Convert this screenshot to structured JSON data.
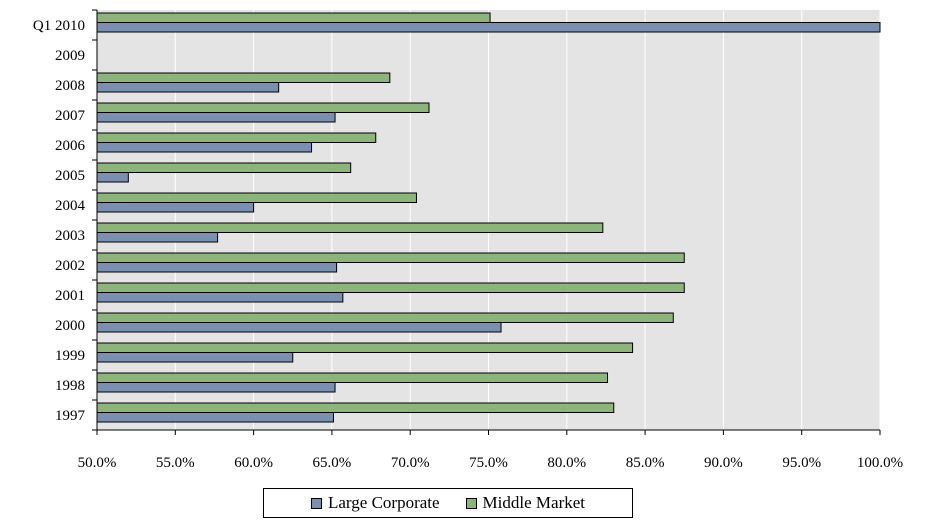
{
  "chart_data": {
    "type": "bar",
    "orientation": "horizontal",
    "categories": [
      "Q1 2010",
      "2009",
      "2008",
      "2007",
      "2006",
      "2005",
      "2004",
      "2003",
      "2002",
      "2001",
      "2000",
      "1999",
      "1998",
      "1997"
    ],
    "series": [
      {
        "name": "Middle Market",
        "color": "#8db47a",
        "values": [
          75.1,
          null,
          68.7,
          71.2,
          67.8,
          66.2,
          70.4,
          82.3,
          87.5,
          87.5,
          86.8,
          84.2,
          82.6,
          83.0
        ]
      },
      {
        "name": "Large Corporate",
        "color": "#7b8fb0",
        "values": [
          100.0,
          null,
          61.6,
          65.2,
          63.7,
          52.0,
          60.0,
          57.7,
          65.3,
          65.7,
          75.8,
          62.5,
          65.2,
          65.1
        ]
      }
    ],
    "xlim": [
      50.0,
      100.0
    ],
    "xticks": [
      "50.0%",
      "55.0%",
      "60.0%",
      "65.0%",
      "70.0%",
      "75.0%",
      "80.0%",
      "85.0%",
      "90.0%",
      "95.0%",
      "100.0%"
    ],
    "xtick_values": [
      50,
      55,
      60,
      65,
      70,
      75,
      80,
      85,
      90,
      95,
      100
    ],
    "grid": true,
    "plot_background": "#e4e4e4",
    "legend_position": "bottom",
    "legend": [
      "Large Corporate",
      "Middle Market"
    ]
  }
}
